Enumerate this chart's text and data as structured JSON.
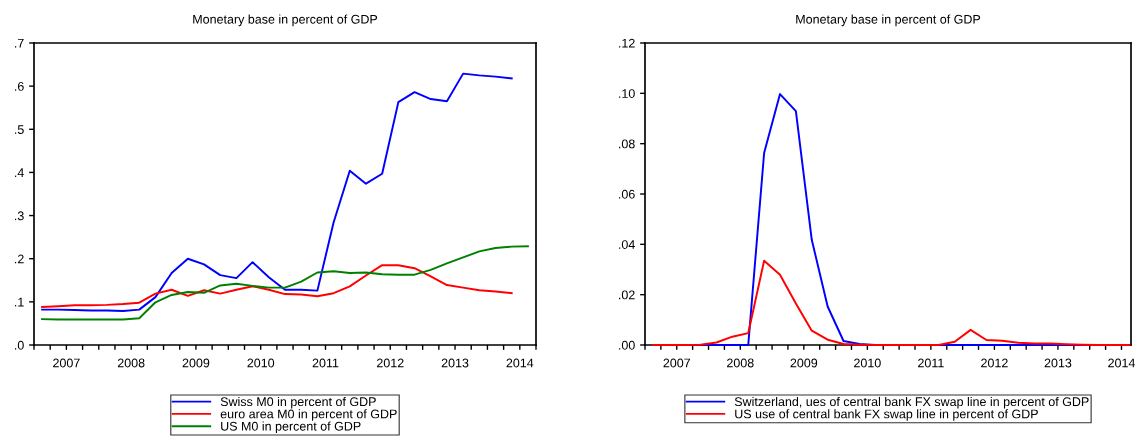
{
  "chart_data": [
    {
      "type": "line",
      "title": "Monetary base in percent of GDP",
      "x": [
        2007.125,
        2007.375,
        2007.625,
        2007.875,
        2008.125,
        2008.375,
        2008.625,
        2008.875,
        2009.125,
        2009.375,
        2009.625,
        2009.875,
        2010.125,
        2010.375,
        2010.625,
        2010.875,
        2011.125,
        2011.375,
        2011.625,
        2011.875,
        2012.125,
        2012.375,
        2012.625,
        2012.875,
        2013.125,
        2013.375,
        2013.625,
        2013.875,
        2014.125,
        2014.375,
        2014.625
      ],
      "series": [
        {
          "name": "Swiss M0 in percent of GDP",
          "color": "#0000ff",
          "values": [
            0.082,
            0.082,
            0.081,
            0.08,
            0.08,
            0.079,
            0.082,
            0.111,
            0.167,
            0.2,
            0.187,
            0.162,
            0.155,
            0.192,
            0.157,
            0.128,
            0.128,
            0.126,
            0.284,
            0.404,
            0.374,
            0.397,
            0.563,
            0.586,
            0.57,
            0.565,
            0.629,
            0.625,
            0.622,
            0.618,
            null
          ]
        },
        {
          "name": "euro area M0 in percent of GDP",
          "color": "#ff0000",
          "values": [
            0.088,
            0.09,
            0.092,
            0.092,
            0.093,
            0.095,
            0.098,
            0.119,
            0.128,
            0.114,
            0.127,
            0.119,
            0.128,
            0.136,
            0.128,
            0.118,
            0.117,
            0.113,
            0.12,
            0.136,
            0.161,
            0.185,
            0.185,
            0.178,
            0.159,
            0.139,
            0.133,
            0.127,
            0.124,
            0.12,
            null
          ]
        },
        {
          "name": "US M0 in percent of GDP",
          "color": "#008000",
          "values": [
            0.06,
            0.059,
            0.059,
            0.059,
            0.059,
            0.059,
            0.062,
            0.099,
            0.116,
            0.123,
            0.121,
            0.138,
            0.142,
            0.137,
            0.133,
            0.133,
            0.147,
            0.168,
            0.171,
            0.167,
            0.168,
            0.164,
            0.163,
            0.163,
            0.174,
            0.189,
            0.203,
            0.217,
            0.225,
            0.228,
            0.229
          ]
        }
      ],
      "xlim": [
        2007,
        2014.75
      ],
      "xticks": [
        {
          "value": 2007,
          "label": null
        },
        {
          "value": 2007.25,
          "label": null
        },
        {
          "value": 2007.5,
          "label": "2007"
        },
        {
          "value": 2007.75,
          "label": null
        },
        {
          "value": 2008,
          "label": null
        },
        {
          "value": 2008.25,
          "label": null
        },
        {
          "value": 2008.5,
          "label": "2008"
        },
        {
          "value": 2008.75,
          "label": null
        },
        {
          "value": 2009,
          "label": null
        },
        {
          "value": 2009.25,
          "label": null
        },
        {
          "value": 2009.5,
          "label": "2009"
        },
        {
          "value": 2009.75,
          "label": null
        },
        {
          "value": 2010,
          "label": null
        },
        {
          "value": 2010.25,
          "label": null
        },
        {
          "value": 2010.5,
          "label": "2010"
        },
        {
          "value": 2010.75,
          "label": null
        },
        {
          "value": 2011,
          "label": null
        },
        {
          "value": 2011.25,
          "label": null
        },
        {
          "value": 2011.5,
          "label": "2011"
        },
        {
          "value": 2011.75,
          "label": null
        },
        {
          "value": 2012,
          "label": null
        },
        {
          "value": 2012.25,
          "label": null
        },
        {
          "value": 2012.5,
          "label": "2012"
        },
        {
          "value": 2012.75,
          "label": null
        },
        {
          "value": 2013,
          "label": null
        },
        {
          "value": 2013.25,
          "label": null
        },
        {
          "value": 2013.5,
          "label": "2013"
        },
        {
          "value": 2013.75,
          "label": null
        },
        {
          "value": 2014,
          "label": null
        },
        {
          "value": 2014.25,
          "label": null
        },
        {
          "value": 2014.5,
          "label": "2014"
        },
        {
          "value": 2014.75,
          "label": null
        }
      ],
      "ylim": [
        0,
        0.7
      ],
      "yticks": [
        {
          "value": 0,
          "label": ".0"
        },
        {
          "value": 0.1,
          "label": ".1"
        },
        {
          "value": 0.2,
          "label": ".2"
        },
        {
          "value": 0.3,
          "label": ".3"
        },
        {
          "value": 0.4,
          "label": ".4"
        },
        {
          "value": 0.5,
          "label": ".5"
        },
        {
          "value": 0.6,
          "label": ".6"
        },
        {
          "value": 0.7,
          "label": ".7"
        }
      ],
      "grid": false,
      "legend": "bottom",
      "line_style": "solid",
      "marker": "none"
    },
    {
      "type": "line",
      "title": "Monetary base in percent of GDP",
      "x": [
        2007.125,
        2007.375,
        2007.625,
        2007.875,
        2008.125,
        2008.375,
        2008.625,
        2008.875,
        2009.125,
        2009.375,
        2009.625,
        2009.875,
        2010.125,
        2010.375,
        2010.625,
        2010.875,
        2011.125,
        2011.375,
        2011.625,
        2011.875,
        2012.125,
        2012.375,
        2012.625,
        2012.875,
        2013.125,
        2013.375,
        2013.625,
        2013.875,
        2014.125,
        2014.375,
        2014.625
      ],
      "series": [
        {
          "name": "Switzerland, ues of central bank FX swap line in percent of GDP",
          "color": "#0000ff",
          "values": [
            null,
            null,
            0,
            0,
            0,
            0,
            0,
            0.0763,
            0.0997,
            0.0929,
            0.0418,
            0.0153,
            0.0016,
            0.0004,
            0,
            0,
            0,
            0,
            0,
            0,
            0,
            0,
            0,
            0,
            0,
            0,
            0,
            0,
            null,
            null,
            null
          ]
        },
        {
          "name": "US use of central bank FX swap line in percent of GDP",
          "color": "#ff0000",
          "values": [
            0,
            0,
            0,
            0.0001,
            0.001,
            0.0033,
            0.0047,
            0.0335,
            0.0279,
            0.0165,
            0.0057,
            0.0021,
            0.0004,
            0.0001,
            0,
            0,
            0,
            0,
            0,
            0.0013,
            0.006,
            0.002,
            0.0017,
            0.0009,
            0.0006,
            0.0006,
            0.0003,
            0.0001,
            0,
            0,
            0
          ]
        }
      ],
      "xlim": [
        2007,
        2014.65
      ],
      "xticks": [
        {
          "value": 2007,
          "label": null
        },
        {
          "value": 2007.25,
          "label": null
        },
        {
          "value": 2007.5,
          "label": "2007"
        },
        {
          "value": 2007.75,
          "label": null
        },
        {
          "value": 2008,
          "label": null
        },
        {
          "value": 2008.25,
          "label": null
        },
        {
          "value": 2008.5,
          "label": "2008"
        },
        {
          "value": 2008.75,
          "label": null
        },
        {
          "value": 2009,
          "label": null
        },
        {
          "value": 2009.25,
          "label": null
        },
        {
          "value": 2009.5,
          "label": "2009"
        },
        {
          "value": 2009.75,
          "label": null
        },
        {
          "value": 2010,
          "label": null
        },
        {
          "value": 2010.25,
          "label": null
        },
        {
          "value": 2010.5,
          "label": "2010"
        },
        {
          "value": 2010.75,
          "label": null
        },
        {
          "value": 2011,
          "label": null
        },
        {
          "value": 2011.25,
          "label": null
        },
        {
          "value": 2011.5,
          "label": "2011"
        },
        {
          "value": 2011.75,
          "label": null
        },
        {
          "value": 2012,
          "label": null
        },
        {
          "value": 2012.25,
          "label": null
        },
        {
          "value": 2012.5,
          "label": "2012"
        },
        {
          "value": 2012.75,
          "label": null
        },
        {
          "value": 2013,
          "label": null
        },
        {
          "value": 2013.25,
          "label": null
        },
        {
          "value": 2013.5,
          "label": "2013"
        },
        {
          "value": 2013.75,
          "label": null
        },
        {
          "value": 2014,
          "label": null
        },
        {
          "value": 2014.25,
          "label": null
        },
        {
          "value": 2014.5,
          "label": "2014"
        }
      ],
      "ylim": [
        0,
        0.12
      ],
      "yticks": [
        {
          "value": 0,
          "label": ".00"
        },
        {
          "value": 0.02,
          "label": ".02"
        },
        {
          "value": 0.04,
          "label": ".04"
        },
        {
          "value": 0.06,
          "label": ".06"
        },
        {
          "value": 0.08,
          "label": ".08"
        },
        {
          "value": 0.1,
          "label": ".10"
        },
        {
          "value": 0.12,
          "label": ".12"
        }
      ],
      "grid": false,
      "legend": "bottom",
      "line_style": "solid",
      "marker": "none"
    }
  ]
}
